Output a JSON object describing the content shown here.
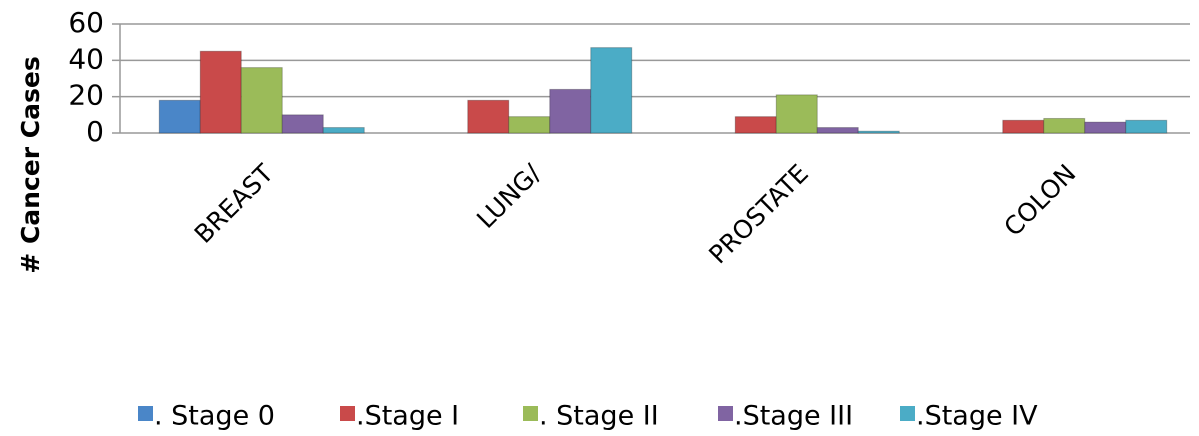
{
  "chart_data": {
    "type": "bar",
    "y_label": "# Cancer Cases",
    "categories": [
      "BREAST",
      "LUNG/",
      "PROSTATE",
      "COLON"
    ],
    "series": [
      {
        "name": ". Stage 0",
        "color": "#4a86c8",
        "values": [
          18,
          0,
          0,
          0
        ]
      },
      {
        "name": ".Stage I",
        "color": "#c94a4a",
        "values": [
          45,
          18,
          9,
          7
        ]
      },
      {
        "name": ". Stage II",
        "color": "#9bbb59",
        "values": [
          36,
          9,
          21,
          8
        ]
      },
      {
        "name": ".Stage III",
        "color": "#8064a2",
        "values": [
          10,
          24,
          3,
          6
        ]
      },
      {
        "name": ".Stage IV",
        "color": "#4bacc6",
        "values": [
          3,
          47,
          1,
          7
        ]
      }
    ],
    "ylim": [
      0,
      60
    ],
    "yticks": [
      0,
      20,
      40,
      60
    ],
    "grid": true
  }
}
